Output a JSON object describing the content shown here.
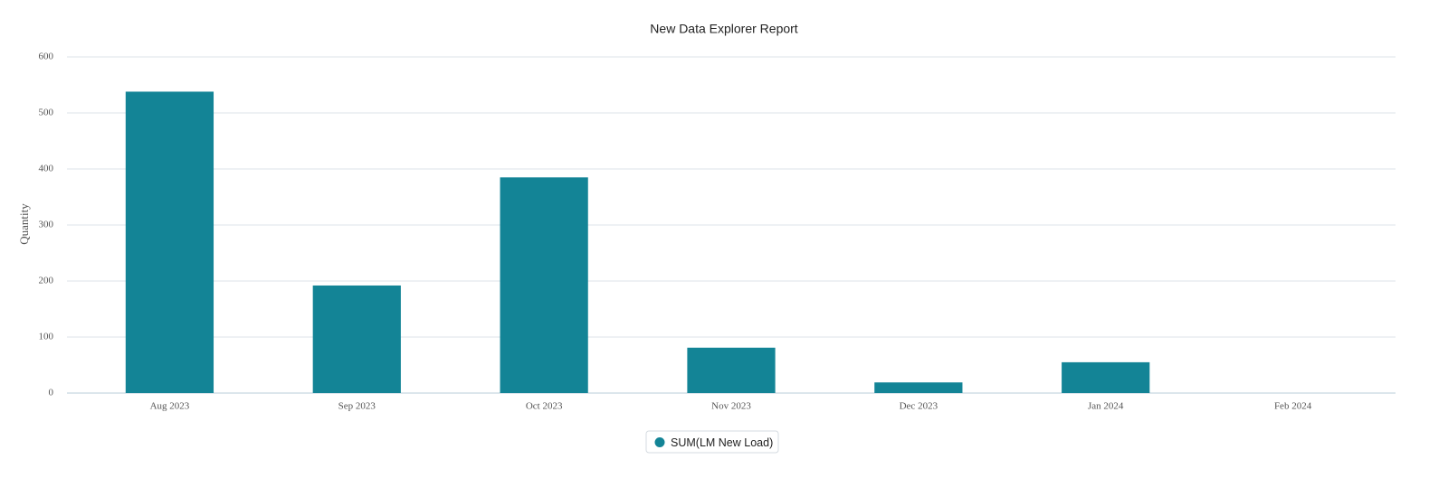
{
  "chart_data": {
    "type": "bar",
    "title": "New Data Explorer Report",
    "y_label": "Quantity",
    "categories": [
      "Aug 2023",
      "Sep 2023",
      "Oct 2023",
      "Nov 2023",
      "Dec 2023",
      "Jan 2024",
      "Feb 2024"
    ],
    "series": [
      {
        "name": "SUM(LM New Load)",
        "color": "#138496",
        "values": [
          538,
          192,
          385,
          81,
          19,
          55,
          0
        ]
      }
    ],
    "ylim": [
      0,
      600
    ],
    "yticks": [
      0,
      100,
      200,
      300,
      400,
      500,
      600
    ],
    "grid": true,
    "legend": "bottom"
  }
}
